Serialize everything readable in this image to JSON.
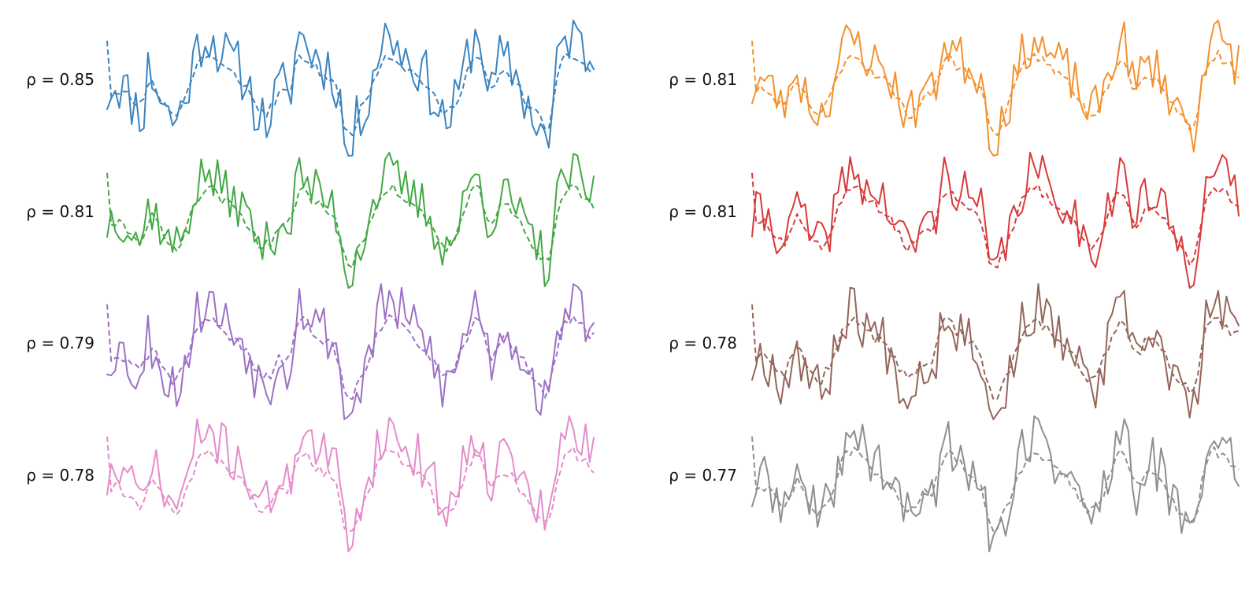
{
  "chart_data": [
    {
      "type": "line",
      "label": "ρ = 0.85",
      "color": "#3b84c0",
      "column": "left",
      "row": 0,
      "seed": 11,
      "series": [
        {
          "style": "solid"
        },
        {
          "style": "dashed"
        }
      ]
    },
    {
      "type": "line",
      "label": "ρ = 0.81",
      "color": "#f3912f",
      "column": "right",
      "row": 0,
      "seed": 23,
      "series": [
        {
          "style": "solid"
        },
        {
          "style": "dashed"
        }
      ]
    },
    {
      "type": "line",
      "label": "ρ = 0.81",
      "color": "#43a843",
      "column": "left",
      "row": 1,
      "seed": 37,
      "series": [
        {
          "style": "solid"
        },
        {
          "style": "dashed"
        }
      ]
    },
    {
      "type": "line",
      "label": "ρ = 0.81",
      "color": "#d83a3a",
      "column": "right",
      "row": 1,
      "seed": 41,
      "series": [
        {
          "style": "solid"
        },
        {
          "style": "dashed"
        }
      ]
    },
    {
      "type": "line",
      "label": "ρ = 0.79",
      "color": "#9d70c6",
      "column": "left",
      "row": 2,
      "seed": 53,
      "series": [
        {
          "style": "solid"
        },
        {
          "style": "dashed"
        }
      ]
    },
    {
      "type": "line",
      "label": "ρ = 0.78",
      "color": "#93665a",
      "column": "right",
      "row": 2,
      "seed": 67,
      "series": [
        {
          "style": "solid"
        },
        {
          "style": "dashed"
        }
      ]
    },
    {
      "type": "line",
      "label": "ρ = 0.78",
      "color": "#e58bcb",
      "column": "left",
      "row": 3,
      "seed": 71,
      "series": [
        {
          "style": "solid"
        },
        {
          "style": "dashed"
        }
      ]
    },
    {
      "type": "line",
      "label": "ρ = 0.77",
      "color": "#8f8f8f",
      "column": "right",
      "row": 3,
      "seed": 89,
      "series": [
        {
          "style": "solid"
        },
        {
          "style": "dashed"
        }
      ]
    }
  ]
}
